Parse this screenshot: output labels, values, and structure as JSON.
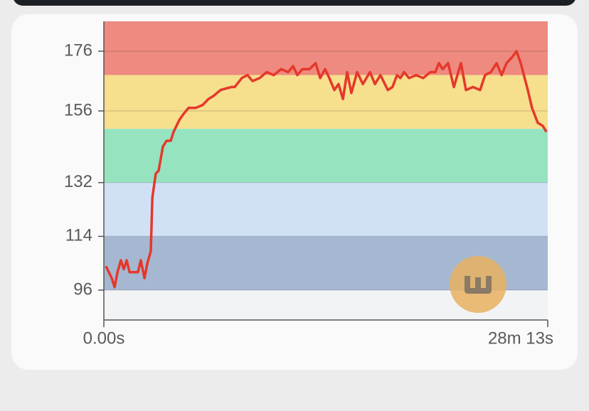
{
  "chart_data": {
    "type": "line",
    "x": [
      8,
      19,
      30,
      41,
      52,
      65,
      76,
      87,
      98,
      114,
      130,
      141,
      155,
      166,
      179,
      185,
      198,
      209,
      225,
      239,
      255,
      266,
      288,
      304,
      323,
      350,
      377,
      399,
      418,
      445,
      486,
      499,
      526,
      548,
      567,
      594,
      621,
      648,
      676,
      703,
      722,
      738,
      757,
      784,
      808,
      825,
      844,
      860,
      879,
      895,
      912,
      928,
      944,
      966,
      988,
      1015,
      1034,
      1055,
      1083,
      1101,
      1118,
      1131,
      1145,
      1164,
      1191,
      1218,
      1245,
      1264,
      1278,
      1292,
      1313,
      1335,
      1362,
      1381,
      1408,
      1435,
      1454,
      1476,
      1498,
      1517,
      1536,
      1557,
      1574,
      1590,
      1617,
      1633,
      1655,
      1674,
      1688
    ],
    "series": [
      {
        "color": "#e5382b",
        "values": [
          104,
          102,
          100,
          97,
          102,
          106,
          103,
          106,
          102,
          102,
          102,
          106,
          100,
          105,
          109,
          127,
          135,
          136,
          144,
          146,
          146,
          149,
          153,
          155,
          157,
          157,
          158,
          160,
          161,
          163,
          164,
          164,
          167,
          168,
          166,
          167,
          169,
          168,
          170,
          169,
          171,
          168,
          170,
          170,
          172,
          167,
          170,
          167,
          163,
          165,
          160,
          169,
          162,
          169,
          165,
          169,
          165,
          168,
          163,
          164,
          168,
          167,
          169,
          167,
          168,
          167,
          169,
          169,
          172,
          170,
          172,
          164,
          172,
          163,
          164,
          163,
          168,
          169,
          172,
          168,
          172,
          174,
          176,
          172,
          163,
          157,
          152,
          151,
          149
        ]
      }
    ],
    "zones": [
      {
        "from": 168,
        "to": 186,
        "color": "#ee8a80"
      },
      {
        "from": 150,
        "to": 168,
        "color": "#f6df8d"
      },
      {
        "from": 132,
        "to": 150,
        "color": "#96e3c0"
      },
      {
        "from": 114,
        "to": 132,
        "color": "#d0e1f6"
      },
      {
        "from": 96,
        "to": 114,
        "color": "#a6b8d1"
      },
      {
        "from": 86,
        "to": 96,
        "color": "#f2f3f5"
      }
    ],
    "xlim": [
      0,
      1693
    ],
    "xticks": [
      {
        "value": 0,
        "label": "0.00s"
      },
      {
        "value": 1693,
        "label": "28m 13s"
      }
    ],
    "ylim": [
      86,
      186
    ],
    "yticks": [
      96,
      114,
      132,
      156,
      176
    ],
    "grid": true
  }
}
